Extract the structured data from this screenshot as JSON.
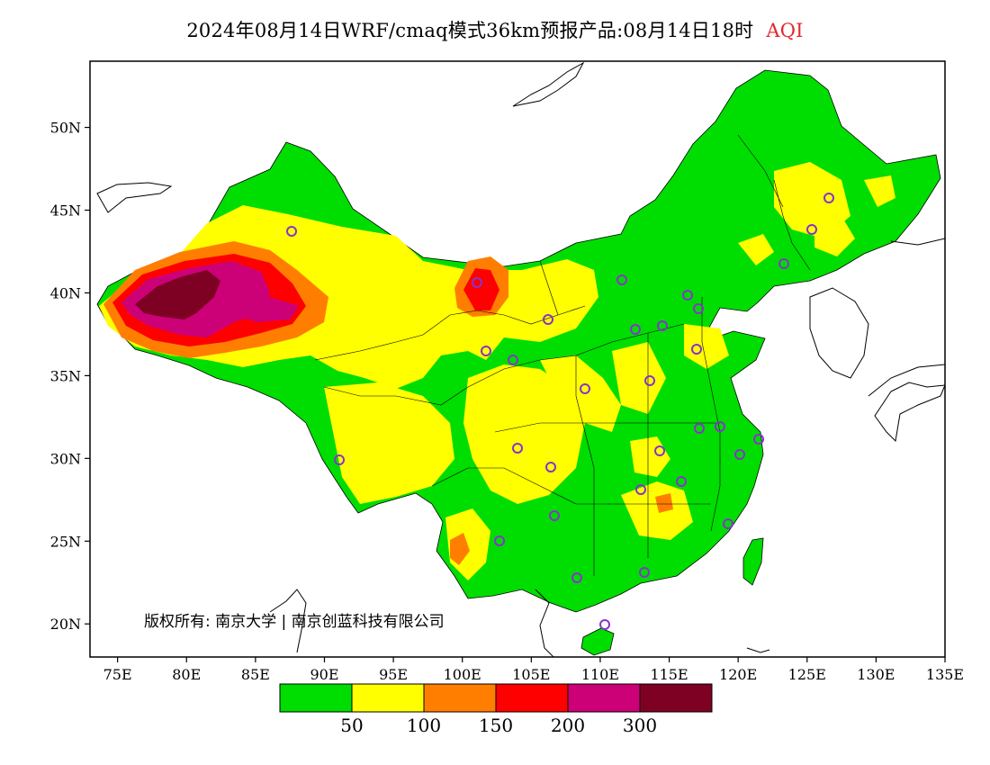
{
  "title": {
    "main": "2024年08月14日WRF/cmaq模式36km预报产品:08月14日18时",
    "variable": "AQI"
  },
  "map": {
    "lon_range": [
      73,
      135
    ],
    "lat_range": [
      18,
      54
    ],
    "lon_ticks": [
      "75E",
      "80E",
      "85E",
      "90E",
      "95E",
      "100E",
      "105E",
      "110E",
      "115E",
      "120E",
      "125E",
      "130E",
      "135E"
    ],
    "lat_ticks": [
      "20N",
      "25N",
      "30N",
      "35N",
      "40N",
      "45N",
      "50N"
    ],
    "copyright": "版权所有: 南京大学 | 南京创蓝科技有限公司",
    "background_category": "50"
  },
  "colorbar": {
    "bins": [
      {
        "color": "#00dd00"
      },
      {
        "color": "#ffff00"
      },
      {
        "color": "#ff7e00"
      },
      {
        "color": "#ff0000"
      },
      {
        "color": "#cc0077"
      },
      {
        "color": "#7e0023"
      }
    ],
    "labels": [
      "50",
      "100",
      "150",
      "200",
      "300"
    ]
  },
  "marker_color": "#8833cc"
}
